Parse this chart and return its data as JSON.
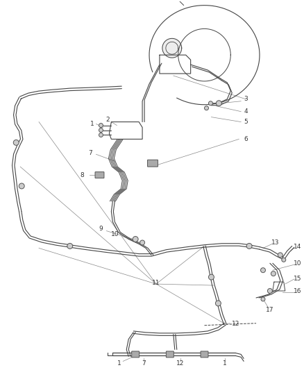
{
  "bg_color": "#ffffff",
  "line_color": "#444444",
  "label_color": "#333333",
  "leader_color": "#888888",
  "lw_tube": 0.9,
  "lw_thin": 0.6,
  "font_size": 6.5
}
